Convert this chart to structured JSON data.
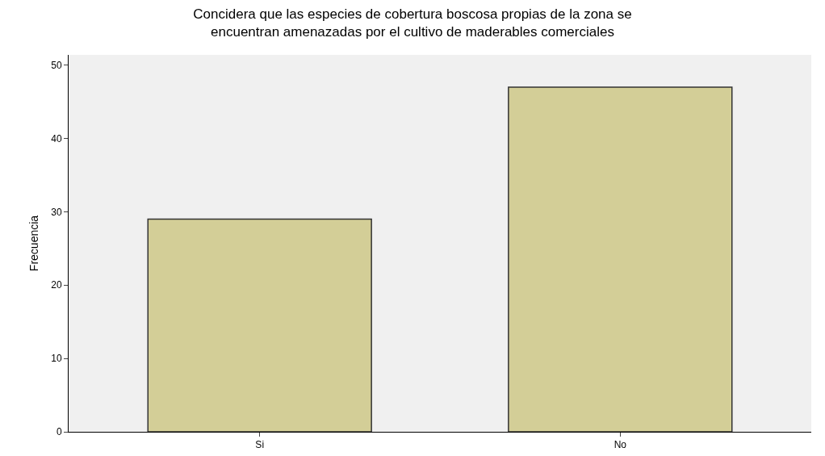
{
  "chart_data": {
    "type": "bar",
    "title": "Concidera que las especies de cobertura boscosa propias de la zona se encuentran amenazadas por el cultivo de maderables comerciales",
    "ylabel": "Frecuencia",
    "categories": [
      "Si",
      "No"
    ],
    "values": [
      29,
      47
    ],
    "color": "#d3ce97",
    "ylim": [
      0,
      51.4
    ],
    "yticks": [
      0,
      10,
      20,
      30,
      40,
      50
    ],
    "grid": false
  }
}
